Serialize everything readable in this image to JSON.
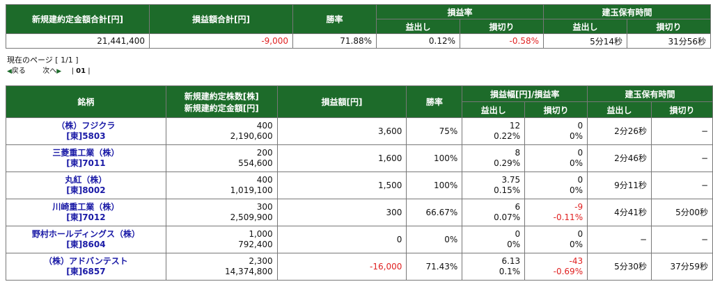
{
  "summary": {
    "headers": {
      "new_amount_total": "新規建約定金額合計[円]",
      "pl_total": "損益額合計[円]",
      "win_rate": "勝率",
      "pl_rate": "損益率",
      "hold_time": "建玉保有時間",
      "profit": "益出し",
      "loss": "損切り"
    },
    "values": {
      "new_amount_total": "21,441,400",
      "pl_total": "-9,000",
      "win_rate": "71.88%",
      "pl_rate_profit": "0.12%",
      "pl_rate_loss": "-0.58%",
      "hold_profit": "5分14秒",
      "hold_loss": "31分56秒"
    }
  },
  "pager": {
    "current_label": "現在のページ [ 1/1 ]",
    "back_label": "戻る",
    "next_label": "次へ",
    "page_number": "01"
  },
  "detail": {
    "headers": {
      "brand": "銘柄",
      "qty_amount_line1": "新規建約定株数[株]",
      "qty_amount_line2": "新規建約定金額[円]",
      "pl": "損益額[円]",
      "win_rate": "勝率",
      "width_rate": "損益幅[円]/損益率",
      "hold_time": "建玉保有時間",
      "profit": "益出し",
      "loss": "損切り"
    },
    "rows": [
      {
        "name": "（株）フジクラ",
        "code": "[東]5803",
        "qty": "400",
        "amount": "2,190,600",
        "pl": "3,600",
        "win_rate": "75%",
        "profit_width": "12",
        "profit_rate": "0.22%",
        "loss_width": "0",
        "loss_rate": "0%",
        "hold_profit": "2分26秒",
        "hold_loss": "−"
      },
      {
        "name": "三菱重工業（株）",
        "code": "[東]7011",
        "qty": "200",
        "amount": "554,600",
        "pl": "1,600",
        "win_rate": "100%",
        "profit_width": "8",
        "profit_rate": "0.29%",
        "loss_width": "0",
        "loss_rate": "0%",
        "hold_profit": "2分46秒",
        "hold_loss": "−"
      },
      {
        "name": "丸紅（株）",
        "code": "[東]8002",
        "qty": "400",
        "amount": "1,019,100",
        "pl": "1,500",
        "win_rate": "100%",
        "profit_width": "3.75",
        "profit_rate": "0.15%",
        "loss_width": "0",
        "loss_rate": "0%",
        "hold_profit": "9分11秒",
        "hold_loss": "−"
      },
      {
        "name": "川崎重工業（株）",
        "code": "[東]7012",
        "qty": "300",
        "amount": "2,509,900",
        "pl": "300",
        "win_rate": "66.67%",
        "profit_width": "6",
        "profit_rate": "0.07%",
        "loss_width": "-9",
        "loss_rate": "-0.11%",
        "hold_profit": "4分41秒",
        "hold_loss": "5分00秒"
      },
      {
        "name": "野村ホールディングス（株）",
        "code": "[東]8604",
        "qty": "1,000",
        "amount": "792,400",
        "pl": "0",
        "win_rate": "0%",
        "profit_width": "0",
        "profit_rate": "0%",
        "loss_width": "0",
        "loss_rate": "0%",
        "hold_profit": "−",
        "hold_loss": "−"
      },
      {
        "name": "（株）アドバンテスト",
        "code": "[東]6857",
        "qty": "2,300",
        "amount": "14,374,800",
        "pl": "-16,000",
        "win_rate": "71.43%",
        "profit_width": "6.13",
        "profit_rate": "0.1%",
        "loss_width": "-43",
        "loss_rate": "-0.69%",
        "hold_profit": "5分30秒",
        "hold_loss": "37分59秒"
      }
    ]
  },
  "colors": {
    "header_green": "#1d6b2a",
    "negative_red": "#e02020",
    "link_blue": "#1a1aa6"
  }
}
